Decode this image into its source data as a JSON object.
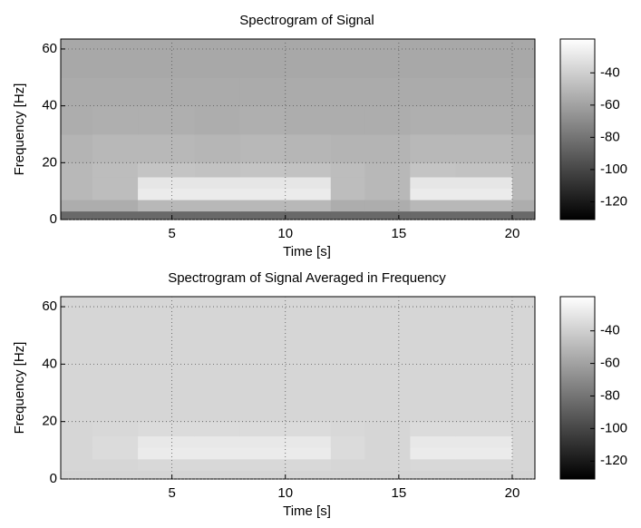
{
  "chart_data": [
    {
      "type": "heatmap",
      "title": "Spectrogram of Signal",
      "xlabel": "Time [s]",
      "ylabel": "Frequency [Hz]",
      "colormap": "gray",
      "grid": true,
      "xlim": [
        0.1,
        21
      ],
      "ylim": [
        0,
        63.5
      ],
      "xticks": [
        5,
        10,
        15,
        20
      ],
      "yticks": [
        0,
        20,
        40,
        60
      ],
      "clim": [
        -131,
        -19
      ],
      "cticks": [
        -40,
        -60,
        -80,
        -100,
        -120
      ],
      "x_edges": [
        0.1,
        1.5,
        3.5,
        6,
        8,
        10,
        12,
        13.5,
        15.5,
        17.5,
        20,
        21
      ],
      "y_edges": [
        0,
        3,
        7,
        11,
        15,
        20,
        30,
        40,
        50,
        63.5
      ],
      "values": [
        [
          -85,
          -85,
          -85,
          -85,
          -85,
          -85,
          -85,
          -85,
          -85,
          -85,
          -85
        ],
        [
          -55,
          -55,
          -50,
          -50,
          -50,
          -50,
          -55,
          -55,
          -50,
          -50,
          -55
        ],
        [
          -50,
          -48,
          -28,
          -28,
          -28,
          -28,
          -48,
          -50,
          -28,
          -28,
          -50
        ],
        [
          -50,
          -48,
          -30,
          -30,
          -30,
          -30,
          -48,
          -50,
          -30,
          -30,
          -50
        ],
        [
          -50,
          -48,
          -45,
          -46,
          -45,
          -46,
          -48,
          -50,
          -45,
          -46,
          -50
        ],
        [
          -52,
          -50,
          -50,
          -51,
          -50,
          -51,
          -52,
          -52,
          -50,
          -50,
          -52
        ],
        [
          -55,
          -54,
          -54,
          -55,
          -54,
          -55,
          -55,
          -55,
          -54,
          -54,
          -55
        ],
        [
          -56,
          -56,
          -56,
          -56,
          -56,
          -56,
          -56,
          -56,
          -56,
          -56,
          -56
        ],
        [
          -57,
          -57,
          -57,
          -57,
          -57,
          -57,
          -57,
          -57,
          -57,
          -57,
          -57
        ]
      ]
    },
    {
      "type": "heatmap",
      "title": "Spectrogram of Signal Averaged in Frequency",
      "xlabel": "Time [s]",
      "ylabel": "Frequency [Hz]",
      "colormap": "gray",
      "grid": true,
      "xlim": [
        0.1,
        21
      ],
      "ylim": [
        0,
        63.5
      ],
      "xticks": [
        5,
        10,
        15,
        20
      ],
      "yticks": [
        0,
        20,
        40,
        60
      ],
      "clim": [
        -131,
        -19
      ],
      "cticks": [
        -40,
        -60,
        -80,
        -100,
        -120
      ],
      "x_edges": [
        0.1,
        1.5,
        3.5,
        6,
        8,
        10,
        12,
        13.5,
        15.5,
        17.5,
        20,
        21
      ],
      "y_edges": [
        0,
        3,
        7,
        11,
        15,
        20,
        30,
        40,
        50,
        63.5
      ],
      "values": [
        [
          -38,
          -38,
          -38,
          -38,
          -38,
          -38,
          -38,
          -38,
          -38,
          -38,
          -38
        ],
        [
          -37,
          -37,
          -36,
          -36,
          -36,
          -36,
          -37,
          -37,
          -36,
          -36,
          -37
        ],
        [
          -37,
          -35,
          -28,
          -28,
          -28,
          -28,
          -35,
          -37,
          -28,
          -28,
          -37
        ],
        [
          -37,
          -35,
          -29,
          -29,
          -29,
          -29,
          -35,
          -37,
          -29,
          -29,
          -37
        ],
        [
          -37,
          -36,
          -35,
          -35,
          -35,
          -35,
          -36,
          -37,
          -35,
          -35,
          -37
        ],
        [
          -37,
          -37,
          -37,
          -37,
          -37,
          -37,
          -37,
          -37,
          -37,
          -37,
          -37
        ],
        [
          -37,
          -37,
          -37,
          -37,
          -37,
          -37,
          -37,
          -37,
          -37,
          -37,
          -37
        ],
        [
          -37,
          -37,
          -37,
          -37,
          -37,
          -37,
          -37,
          -37,
          -37,
          -37,
          -37
        ],
        [
          -37,
          -37,
          -37,
          -37,
          -37,
          -37,
          -37,
          -37,
          -37,
          -37,
          -37
        ]
      ]
    }
  ]
}
